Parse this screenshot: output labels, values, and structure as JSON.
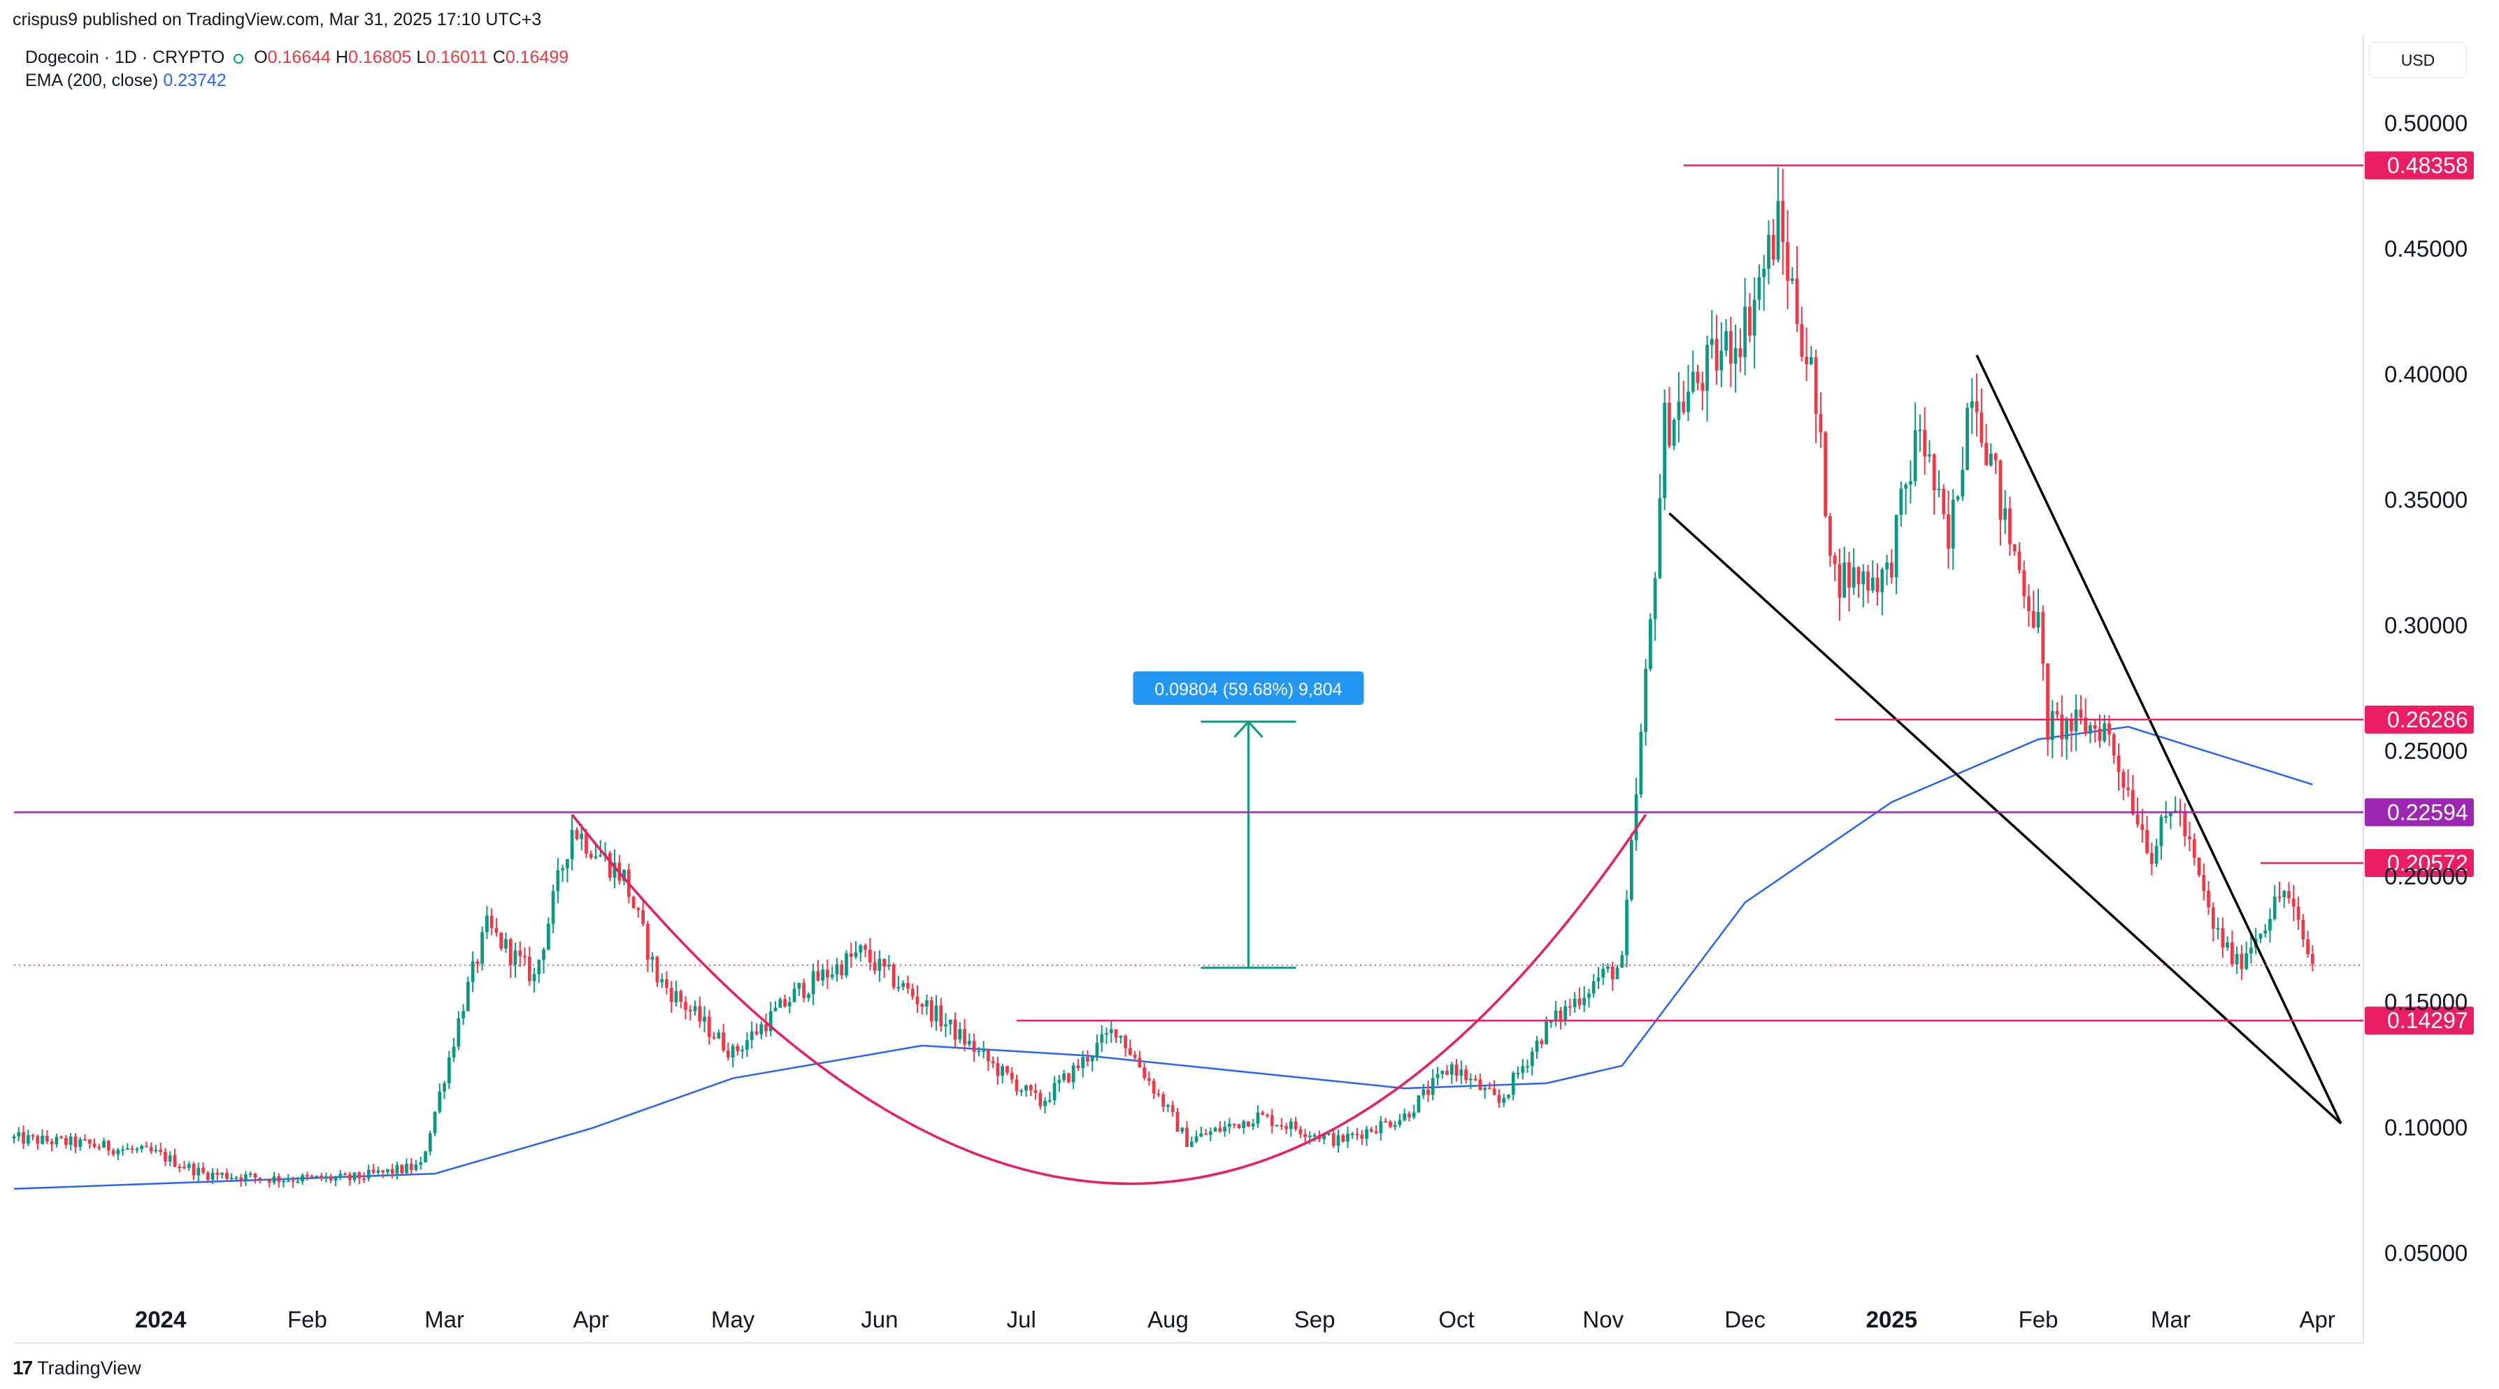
{
  "header": {
    "publisher_line": "crispus9 published on TradingView.com, Mar 31, 2025 17:10 UTC+3",
    "symbol_line": "Dogecoin · 1D · CRYPTO",
    "ohlc": [
      {
        "label": "O",
        "value": "0.16644"
      },
      {
        "label": "H",
        "value": "0.16805"
      },
      {
        "label": "L",
        "value": "0.16011"
      },
      {
        "label": "C",
        "value": "0.16499"
      }
    ],
    "ema_label": "EMA (200, close)",
    "ema_value": "0.23742",
    "currency": "USD"
  },
  "footer": {
    "brand": "TradingView",
    "brand_mark": "17"
  },
  "colors": {
    "up": "#089981",
    "down": "#f23645",
    "ema": "#2962ff",
    "pink": "#e91e63",
    "purple": "#9c27b0",
    "measure": "#2196f3",
    "measure_arrow": "#089981",
    "black": "#000000"
  },
  "chart_data": {
    "type": "candlestick",
    "title": "",
    "y_scale": "linear",
    "ylim": [
      0.03,
      0.52
    ],
    "y_ticks": [
      "0.50000",
      "0.45000",
      "0.40000",
      "0.35000",
      "0.30000",
      "0.25000",
      "0.20000",
      "0.15000",
      "0.10000",
      "0.05000"
    ],
    "y_tick_values": [
      0.5,
      0.45,
      0.4,
      0.35,
      0.3,
      0.25,
      0.2,
      0.15,
      0.1,
      0.05
    ],
    "x_range": [
      "2023-12-01",
      "2025-04-10"
    ],
    "x_labels": [
      {
        "label": "2024",
        "date": "2024-01-01",
        "bold": true
      },
      {
        "label": "Feb",
        "date": "2024-02-01"
      },
      {
        "label": "Mar",
        "date": "2024-03-01"
      },
      {
        "label": "Apr",
        "date": "2024-04-01"
      },
      {
        "label": "May",
        "date": "2024-05-01"
      },
      {
        "label": "Jun",
        "date": "2024-06-01"
      },
      {
        "label": "Jul",
        "date": "2024-07-01"
      },
      {
        "label": "Aug",
        "date": "2024-08-01"
      },
      {
        "label": "Sep",
        "date": "2024-09-01"
      },
      {
        "label": "Oct",
        "date": "2024-10-01"
      },
      {
        "label": "Nov",
        "date": "2024-11-01"
      },
      {
        "label": "Dec",
        "date": "2024-12-01"
      },
      {
        "label": "2025",
        "date": "2025-01-01",
        "bold": true
      },
      {
        "label": "Feb",
        "date": "2025-02-01"
      },
      {
        "label": "Mar",
        "date": "2025-03-01"
      },
      {
        "label": "Apr",
        "date": "2025-04-01"
      }
    ],
    "price_path": [
      {
        "date": "2023-12-01",
        "close": 0.096
      },
      {
        "date": "2023-12-15",
        "close": 0.094
      },
      {
        "date": "2023-12-31",
        "close": 0.09
      },
      {
        "date": "2024-01-10",
        "close": 0.082
      },
      {
        "date": "2024-01-25",
        "close": 0.08
      },
      {
        "date": "2024-02-10",
        "close": 0.08
      },
      {
        "date": "2024-02-25",
        "close": 0.085
      },
      {
        "date": "2024-03-05",
        "close": 0.15
      },
      {
        "date": "2024-03-10",
        "close": 0.18
      },
      {
        "date": "2024-03-20",
        "close": 0.16
      },
      {
        "date": "2024-03-28",
        "close": 0.22
      },
      {
        "date": "2024-04-08",
        "close": 0.2
      },
      {
        "date": "2024-04-15",
        "close": 0.16
      },
      {
        "date": "2024-05-01",
        "close": 0.13
      },
      {
        "date": "2024-05-15",
        "close": 0.155
      },
      {
        "date": "2024-05-28",
        "close": 0.17
      },
      {
        "date": "2024-06-10",
        "close": 0.15
      },
      {
        "date": "2024-06-25",
        "close": 0.125
      },
      {
        "date": "2024-07-05",
        "close": 0.11
      },
      {
        "date": "2024-07-21",
        "close": 0.14
      },
      {
        "date": "2024-08-05",
        "close": 0.095
      },
      {
        "date": "2024-08-20",
        "close": 0.105
      },
      {
        "date": "2024-09-06",
        "close": 0.095
      },
      {
        "date": "2024-09-20",
        "close": 0.105
      },
      {
        "date": "2024-09-30",
        "close": 0.125
      },
      {
        "date": "2024-10-10",
        "close": 0.11
      },
      {
        "date": "2024-10-20",
        "close": 0.14
      },
      {
        "date": "2024-10-31",
        "close": 0.16
      },
      {
        "date": "2024-11-05",
        "close": 0.165
      },
      {
        "date": "2024-11-11",
        "close": 0.3
      },
      {
        "date": "2024-11-14",
        "close": 0.38
      },
      {
        "date": "2024-11-22",
        "close": 0.4
      },
      {
        "date": "2024-12-01",
        "close": 0.42
      },
      {
        "date": "2024-12-08",
        "close": 0.46
      },
      {
        "date": "2024-12-15",
        "close": 0.4
      },
      {
        "date": "2024-12-20",
        "close": 0.32
      },
      {
        "date": "2024-12-31",
        "close": 0.32
      },
      {
        "date": "2025-01-07",
        "close": 0.38
      },
      {
        "date": "2025-01-13",
        "close": 0.33
      },
      {
        "date": "2025-01-18",
        "close": 0.4
      },
      {
        "date": "2025-01-25",
        "close": 0.34
      },
      {
        "date": "2025-02-01",
        "close": 0.3
      },
      {
        "date": "2025-02-03",
        "close": 0.26
      },
      {
        "date": "2025-02-15",
        "close": 0.26
      },
      {
        "date": "2025-02-25",
        "close": 0.21
      },
      {
        "date": "2025-03-02",
        "close": 0.23
      },
      {
        "date": "2025-03-10",
        "close": 0.18
      },
      {
        "date": "2025-03-15",
        "close": 0.165
      },
      {
        "date": "2025-03-25",
        "close": 0.195
      },
      {
        "date": "2025-03-31",
        "close": 0.165
      }
    ],
    "ema_200": [
      {
        "date": "2023-12-01",
        "value": 0.076
      },
      {
        "date": "2024-02-28",
        "value": 0.082
      },
      {
        "date": "2024-04-01",
        "value": 0.1
      },
      {
        "date": "2024-05-01",
        "value": 0.12
      },
      {
        "date": "2024-06-10",
        "value": 0.133
      },
      {
        "date": "2024-07-15",
        "value": 0.129
      },
      {
        "date": "2024-08-20",
        "value": 0.122
      },
      {
        "date": "2024-09-20",
        "value": 0.116
      },
      {
        "date": "2024-10-20",
        "value": 0.118
      },
      {
        "date": "2024-11-05",
        "value": 0.125
      },
      {
        "date": "2024-12-01",
        "value": 0.19
      },
      {
        "date": "2025-01-01",
        "value": 0.23
      },
      {
        "date": "2025-02-01",
        "value": 0.255
      },
      {
        "date": "2025-02-20",
        "value": 0.26
      },
      {
        "date": "2025-03-31",
        "value": 0.237
      }
    ],
    "horizontal_levels": [
      {
        "value": 0.48358,
        "label": "0.48358",
        "color": "#e91e63",
        "from": "2024-11-18"
      },
      {
        "value": 0.26286,
        "label": "0.26286",
        "color": "#e91e63",
        "from": "2024-12-20"
      },
      {
        "value": 0.22594,
        "label": "0.22594",
        "color": "#9c27b0",
        "from": "2023-12-01"
      },
      {
        "value": 0.20572,
        "label": "0.20572",
        "color": "#e91e63",
        "from": "2025-03-20"
      },
      {
        "value": 0.14297,
        "label": "0.14297",
        "color": "#e91e63",
        "from": "2024-06-30"
      }
    ],
    "current_price": 0.165,
    "measure_annotation": {
      "label": "0.09804 (59.68%) 9,804",
      "date": "2024-08-18",
      "from": 0.164,
      "to": 0.262
    },
    "cup_curve": {
      "start": [
        "2024-03-28",
        0.225
      ],
      "bottom": [
        "2024-07-24",
        0.078
      ],
      "end": [
        "2024-11-10",
        0.225
      ]
    },
    "wedge_lines": [
      {
        "from": [
          "2024-11-15",
          0.345
        ],
        "to": [
          "2025-04-06",
          0.102
        ]
      },
      {
        "from": [
          "2025-01-19",
          0.408
        ],
        "to": [
          "2025-04-06",
          0.102
        ]
      }
    ]
  }
}
